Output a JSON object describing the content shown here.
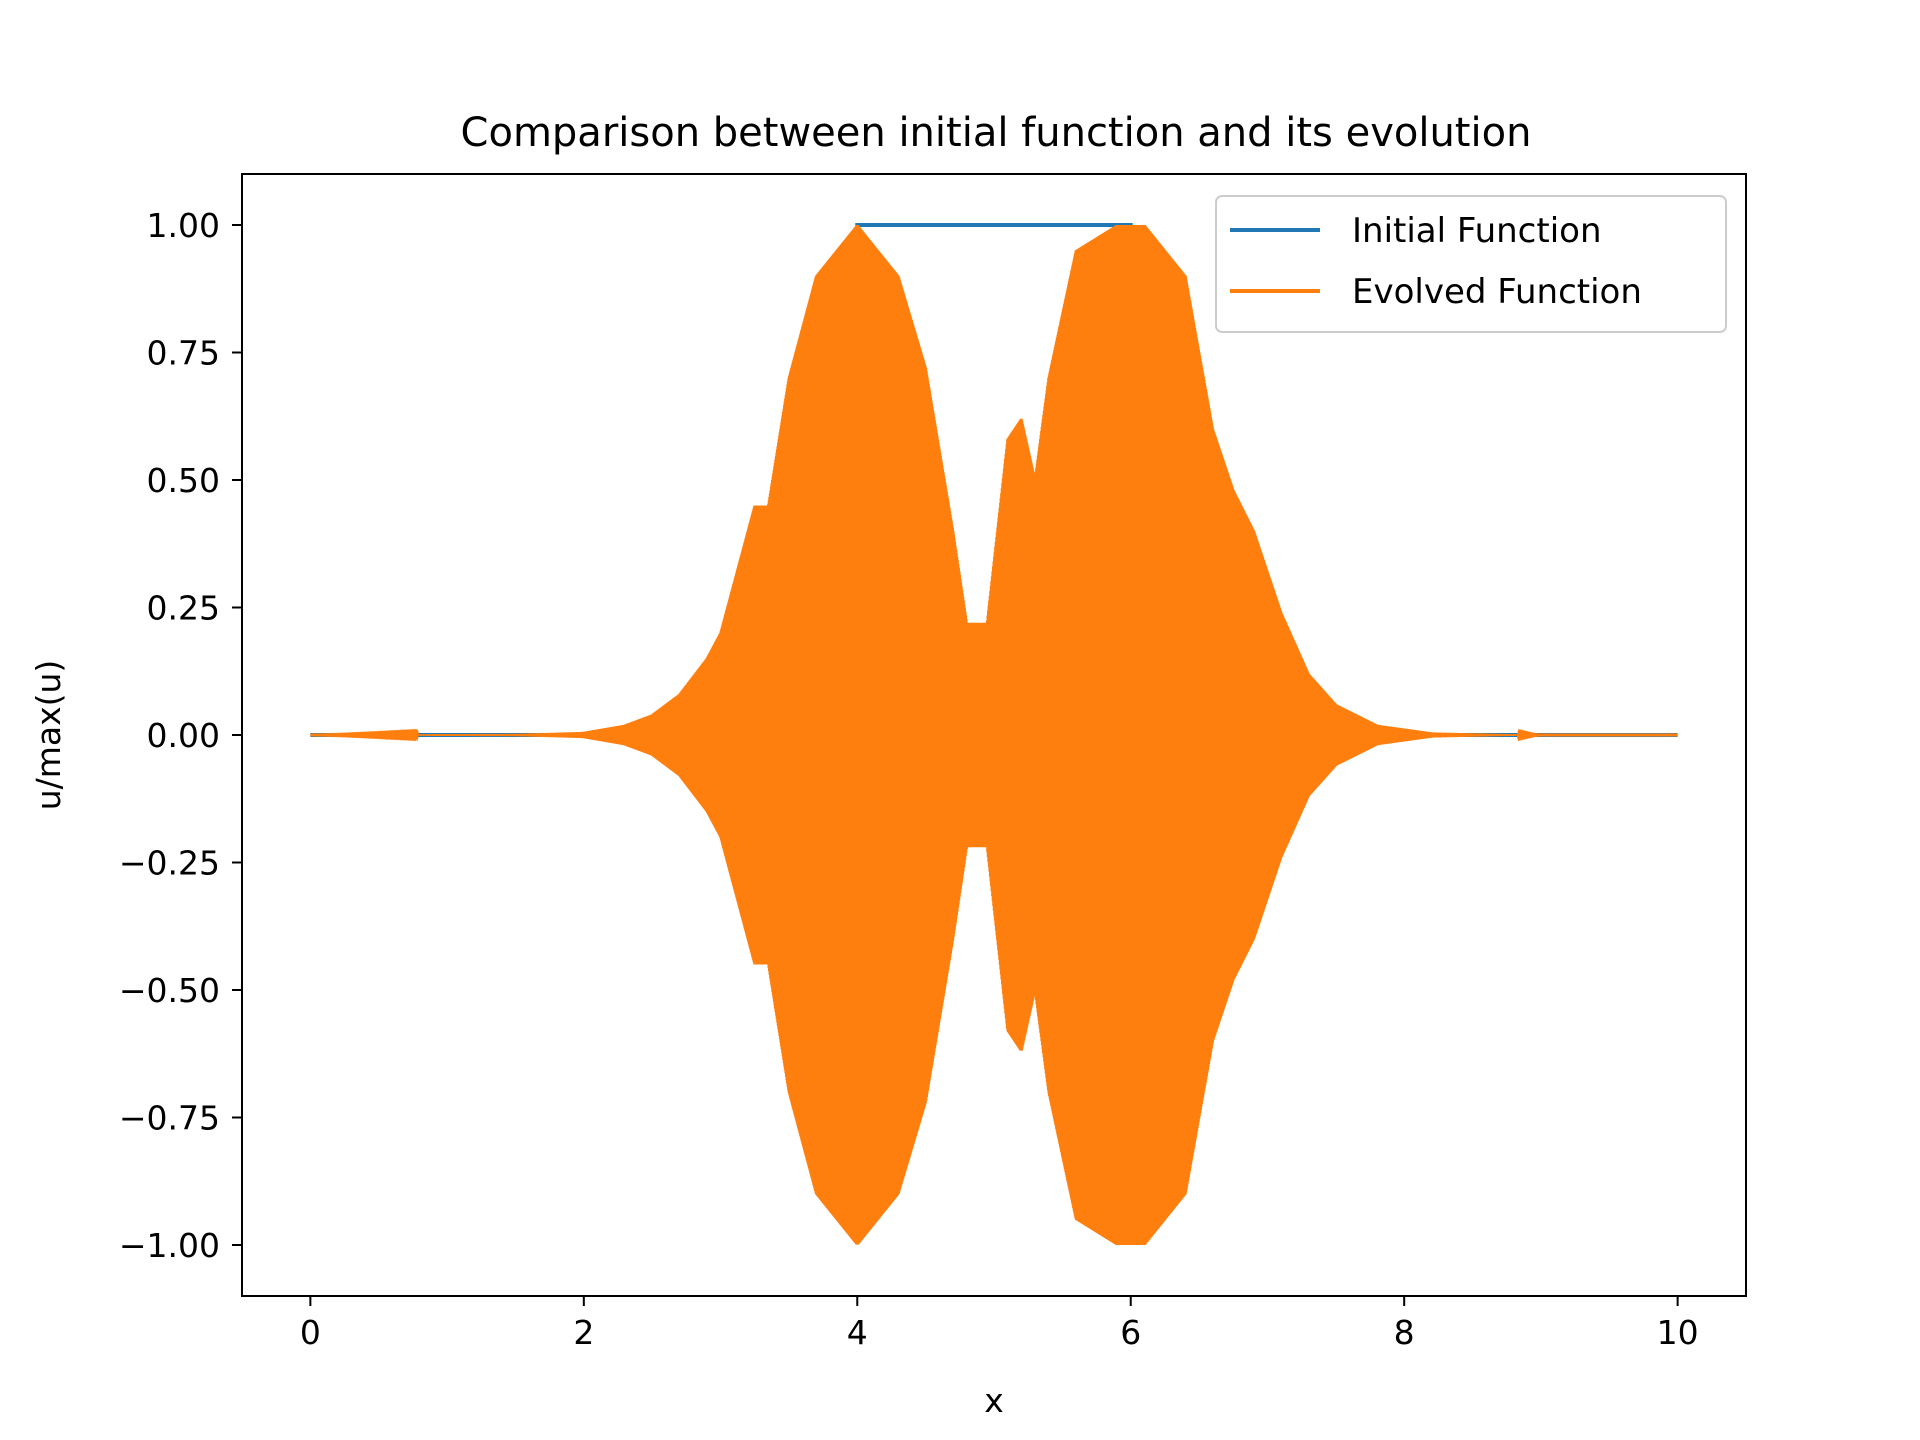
{
  "chart_data": {
    "type": "line",
    "title": "Comparison between initial function and its evolution",
    "xlabel": "x",
    "ylabel": "u/max(u)",
    "xlim": [
      -0.5,
      10.5
    ],
    "ylim": [
      -1.1,
      1.1
    ],
    "x_ticks": [
      0,
      2,
      4,
      6,
      8,
      10
    ],
    "x_tick_labels": [
      "0",
      "2",
      "4",
      "6",
      "8",
      "10"
    ],
    "y_ticks": [
      1.0,
      0.75,
      0.5,
      0.25,
      0.0,
      -0.25,
      -0.5,
      -0.75,
      -1.0
    ],
    "y_tick_labels": [
      "1.00",
      "0.75",
      "0.50",
      "0.25",
      "0.00",
      "−0.25",
      "−0.50",
      "−0.75",
      "−1.00"
    ],
    "grid": false,
    "legend_position": "top-right",
    "series": [
      {
        "name": "Initial Function",
        "color": "#1f77b4",
        "description_points": [
          [
            0,
            0
          ],
          [
            4,
            0
          ],
          [
            4,
            1
          ],
          [
            6,
            1
          ],
          [
            6,
            0
          ],
          [
            10,
            0
          ]
        ]
      },
      {
        "name": "Evolved Function",
        "color": "#ff7f0e",
        "envelope_points": [
          [
            0.0,
            0.0
          ],
          [
            1.5,
            0.002
          ],
          [
            2.0,
            0.006
          ],
          [
            2.3,
            0.02
          ],
          [
            2.5,
            0.04
          ],
          [
            2.7,
            0.08
          ],
          [
            2.9,
            0.15
          ],
          [
            3.0,
            0.2
          ],
          [
            3.1,
            0.3
          ],
          [
            3.25,
            0.45
          ],
          [
            3.35,
            0.45
          ],
          [
            3.5,
            0.7
          ],
          [
            3.7,
            0.9
          ],
          [
            4.0,
            1.0
          ],
          [
            4.3,
            0.9
          ],
          [
            4.5,
            0.72
          ],
          [
            4.7,
            0.4
          ],
          [
            4.8,
            0.22
          ],
          [
            4.95,
            0.22
          ],
          [
            5.1,
            0.58
          ],
          [
            5.2,
            0.62
          ],
          [
            5.3,
            0.5
          ],
          [
            5.4,
            0.7
          ],
          [
            5.6,
            0.95
          ],
          [
            5.9,
            1.0
          ],
          [
            6.1,
            1.0
          ],
          [
            6.4,
            0.9
          ],
          [
            6.6,
            0.6
          ],
          [
            6.75,
            0.48
          ],
          [
            6.9,
            0.4
          ],
          [
            7.1,
            0.24
          ],
          [
            7.3,
            0.12
          ],
          [
            7.5,
            0.06
          ],
          [
            7.8,
            0.02
          ],
          [
            8.2,
            0.005
          ],
          [
            9.0,
            0.0
          ],
          [
            10.0,
            0.0
          ]
        ]
      }
    ]
  }
}
